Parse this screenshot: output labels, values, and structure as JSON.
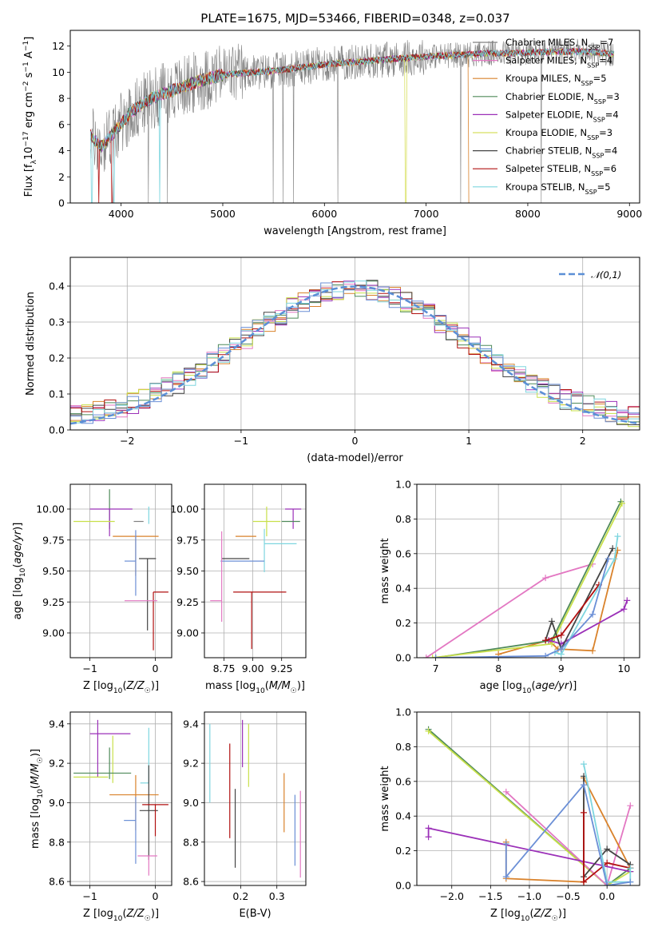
{
  "figure": {
    "title": "PLATE=1675, MJD=53466, FIBERID=0348, z=0.037"
  },
  "chart_data": [
    {
      "id": "spectrum",
      "type": "line",
      "title": "PLATE=1675, MJD=53466, FIBERID=0348, z=0.037",
      "xlabel": "wavelength [Angstrom, rest frame]",
      "ylabel": "Flux [f_λ 10^-17 erg cm^-2 s^-1 A^-1]",
      "xlim": [
        3500,
        9100
      ],
      "ylim": [
        0,
        13.2
      ],
      "xticks": [
        4000,
        5000,
        6000,
        7000,
        8000,
        9000
      ],
      "yticks": [
        0,
        2,
        4,
        6,
        8,
        10,
        12
      ],
      "grid": false,
      "legend_position": "upper-right",
      "data_range": [
        3700,
        8850
      ],
      "continuum": [
        [
          3700,
          5.2
        ],
        [
          3800,
          4.3
        ],
        [
          3950,
          5.6
        ],
        [
          4100,
          7.0
        ],
        [
          4300,
          8.0
        ],
        [
          4500,
          8.6
        ],
        [
          4800,
          9.4
        ],
        [
          5000,
          9.8
        ],
        [
          5500,
          10.1
        ],
        [
          6000,
          10.6
        ],
        [
          6500,
          10.9
        ],
        [
          7000,
          11.2
        ],
        [
          7500,
          11.4
        ],
        [
          8000,
          11.5
        ],
        [
          8500,
          11.6
        ],
        [
          8850,
          11.4
        ]
      ],
      "drops": [
        {
          "series": "Kroupa STELIB, N_SSP=5",
          "x": [
            3710,
            3930,
            4380
          ]
        },
        {
          "series": "Salpeter STELIB, N_SSP=6",
          "x": [
            3780,
            3910
          ]
        },
        {
          "series": "Kroupa ELODIE, N_SSP=3",
          "x": [
            6800
          ]
        },
        {
          "series": "Kroupa MILES, N_SSP=5",
          "x": [
            7420
          ]
        }
      ],
      "series": [
        {
          "name": "Chabrier MILES, N_SSP=7",
          "color": "#808080"
        },
        {
          "name": "Salpeter MILES, N_SSP=4",
          "color": "#e377c2"
        },
        {
          "name": "Kroupa MILES, N_SSP=5",
          "color": "#d9822b"
        },
        {
          "name": "Chabrier ELODIE, N_SSP=3",
          "color": "#4f8a5a"
        },
        {
          "name": "Salpeter ELODIE, N_SSP=4",
          "color": "#9b30b8"
        },
        {
          "name": "Kroupa ELODIE, N_SSP=3",
          "color": "#d8e060"
        },
        {
          "name": "Chabrier STELIB, N_SSP=4",
          "color": "#444444"
        },
        {
          "name": "Salpeter STELIB, N_SSP=6",
          "color": "#b11010"
        },
        {
          "name": "Kroupa STELIB, N_SSP=5",
          "color": "#7ed6df"
        }
      ]
    },
    {
      "id": "residuals",
      "type": "histogram",
      "xlabel": "(data-model)/error",
      "ylabel": "Normed distribution",
      "xlim": [
        -2.5,
        2.5
      ],
      "ylim": [
        0,
        0.48
      ],
      "xticks": [
        -2,
        -1,
        0,
        1,
        2
      ],
      "yticks": [
        0.0,
        0.1,
        0.2,
        0.3,
        0.4
      ],
      "grid": true,
      "legend_position": "upper-right",
      "legend": "𝒩(0,1)",
      "bin_width": 0.1,
      "reference_curve": {
        "type": "gaussian",
        "mu": 0,
        "sigma": 1,
        "color": "#5b8fd6"
      },
      "series_colors": [
        "#e377c2",
        "#d9822b",
        "#4f8a5a",
        "#9b30b8",
        "#c8e04a",
        "#444444",
        "#b11010",
        "#7ed6df",
        "#6b8fd6"
      ]
    },
    {
      "id": "age-vs-Z",
      "type": "errorbar",
      "xlabel": "Z [log10(Z/Z☉)]",
      "ylabel": "age [log10(age/yr)]",
      "xlim": [
        -1.3,
        0.25
      ],
      "ylim": [
        8.8,
        10.2
      ],
      "xticks": [
        -1,
        0
      ],
      "yticks": [
        9.0,
        9.25,
        9.5,
        9.75,
        10.0
      ],
      "grid": true,
      "points": [
        {
          "color": "#4f8a5a",
          "x": -0.7,
          "y": 10.0,
          "xerr": [
            0.0,
            0.0
          ],
          "yerr": [
            0.16,
            0.16
          ]
        },
        {
          "color": "#9b30b8",
          "x": -0.7,
          "y": 10.0,
          "xerr": [
            0.3,
            0.35
          ],
          "yerr": [
            0.22,
            0.0
          ]
        },
        {
          "color": "#c8e04a",
          "x": -0.72,
          "y": 9.9,
          "xerr": [
            0.53,
            0.1
          ],
          "yerr": [
            0.0,
            0.0
          ]
        },
        {
          "color": "#808080",
          "x": -0.33,
          "y": 9.9,
          "xerr": [
            0.0,
            0.15
          ],
          "yerr": [
            0.0,
            0.0
          ]
        },
        {
          "color": "#7ed6df",
          "x": -0.1,
          "y": 9.95,
          "xerr": [
            0.0,
            0.0
          ],
          "yerr": [
            0.07,
            0.07
          ]
        },
        {
          "color": "#d9822b",
          "x": -0.3,
          "y": 9.78,
          "xerr": [
            0.35,
            0.35
          ],
          "yerr": [
            0.32,
            0.0
          ]
        },
        {
          "color": "#6b8fd6",
          "x": -0.3,
          "y": 9.58,
          "xerr": [
            0.17,
            0.0
          ],
          "yerr": [
            0.28,
            0.25
          ]
        },
        {
          "color": "#444444",
          "x": -0.12,
          "y": 9.6,
          "xerr": [
            0.13,
            0.13
          ],
          "yerr": [
            0.58,
            0.0
          ]
        },
        {
          "color": "#b11010",
          "x": -0.03,
          "y": 9.33,
          "xerr": [
            0.0,
            0.23
          ],
          "yerr": [
            0.47,
            0.0
          ]
        },
        {
          "color": "#e377c2",
          "x": -0.1,
          "y": 9.26,
          "xerr": [
            0.37,
            0.13
          ],
          "yerr": [
            0.0,
            0.0
          ]
        }
      ]
    },
    {
      "id": "age-vs-mass",
      "type": "errorbar",
      "xlabel": "mass [log10(M/M☉)]",
      "ylabel": "",
      "xlim": [
        8.58,
        9.46
      ],
      "ylim": [
        8.8,
        10.2
      ],
      "xticks": [
        8.75,
        9.0,
        9.25
      ],
      "yticks": [
        9.0,
        9.25,
        9.5,
        9.75,
        10.0
      ],
      "grid": true,
      "points": [
        {
          "color": "#9b30b8",
          "x": 9.35,
          "y": 10.0,
          "xerr": [
            0.07,
            0.07
          ],
          "yerr": [
            0.16,
            0.0
          ]
        },
        {
          "color": "#4f8a5a",
          "x": 9.33,
          "y": 9.9,
          "xerr": [
            0.08,
            0.08
          ],
          "yerr": [
            0.0,
            0.0
          ]
        },
        {
          "color": "#c8e04a",
          "x": 9.12,
          "y": 9.9,
          "xerr": [
            0.12,
            0.12
          ],
          "yerr": [
            0.12,
            0.12
          ]
        },
        {
          "color": "#7ed6df",
          "x": 9.1,
          "y": 9.72,
          "xerr": [
            0.0,
            0.28
          ],
          "yerr": [
            0.23,
            0.12
          ]
        },
        {
          "color": "#d9822b",
          "x": 9.03,
          "y": 9.78,
          "xerr": [
            0.18,
            0.0
          ],
          "yerr": [
            0.0,
            0.0
          ]
        },
        {
          "color": "#444444",
          "x": 8.97,
          "y": 9.6,
          "xerr": [
            0.24,
            0.0
          ],
          "yerr": [
            0.0,
            0.0
          ]
        },
        {
          "color": "#6b8fd6",
          "x": 8.9,
          "y": 9.58,
          "xerr": [
            0.18,
            0.2
          ],
          "yerr": [
            0.0,
            0.0
          ]
        },
        {
          "color": "#b11010",
          "x": 8.99,
          "y": 9.33,
          "xerr": [
            0.16,
            0.3
          ],
          "yerr": [
            0.46,
            0.0
          ]
        },
        {
          "color": "#e377c2",
          "x": 8.73,
          "y": 9.26,
          "xerr": [
            0.1,
            0.0
          ],
          "yerr": [
            0.17,
            0.56
          ]
        }
      ]
    },
    {
      "id": "massweight-vs-age",
      "type": "line",
      "xlabel": "age [log10(age/yr)]",
      "ylabel": "mass weight",
      "xlim": [
        6.7,
        10.25
      ],
      "ylim": [
        0,
        1.0
      ],
      "xticks": [
        7,
        8,
        9,
        10
      ],
      "yticks": [
        0.0,
        0.2,
        0.4,
        0.6,
        0.8,
        1.0
      ],
      "grid": true,
      "series": [
        {
          "color": "#e377c2",
          "x": [
            6.85,
            8.75,
            9.5
          ],
          "y": [
            0.0,
            0.46,
            0.54
          ]
        },
        {
          "color": "#d9822b",
          "x": [
            8.0,
            8.8,
            8.95,
            9.5,
            9.9
          ],
          "y": [
            0.02,
            0.1,
            0.05,
            0.04,
            0.62
          ]
        },
        {
          "color": "#4f8a5a",
          "x": [
            7.0,
            8.85,
            9.95
          ],
          "y": [
            0.0,
            0.1,
            0.9
          ]
        },
        {
          "color": "#c8e04a",
          "x": [
            6.95,
            8.85,
            9.97
          ],
          "y": [
            0.0,
            0.08,
            0.89
          ]
        },
        {
          "color": "#9b30b8",
          "x": [
            8.8,
            9.0,
            10.0,
            10.05
          ],
          "y": [
            0.1,
            0.08,
            0.28,
            0.33
          ]
        },
        {
          "color": "#444444",
          "x": [
            8.75,
            8.85,
            9.0,
            9.82
          ],
          "y": [
            0.1,
            0.21,
            0.05,
            0.63
          ]
        },
        {
          "color": "#b11010",
          "x": [
            8.75,
            9.0,
            9.6
          ],
          "y": [
            0.1,
            0.13,
            0.42
          ]
        },
        {
          "color": "#7ed6df",
          "x": [
            8.9,
            9.0,
            9.85,
            9.9
          ],
          "y": [
            0.03,
            0.02,
            0.57,
            0.7
          ]
        },
        {
          "color": "#6b8fd6",
          "x": [
            7.0,
            8.75,
            9.0,
            9.5,
            9.75
          ],
          "y": [
            0.0,
            0.01,
            0.05,
            0.25,
            0.57
          ]
        }
      ]
    },
    {
      "id": "mass-vs-Z",
      "type": "errorbar",
      "xlabel": "Z [log10(Z/Z☉)]",
      "ylabel": "mass [log10(M/M☉)]",
      "xlim": [
        -1.3,
        0.25
      ],
      "ylim": [
        8.58,
        9.46
      ],
      "xticks": [
        -1,
        0
      ],
      "yticks": [
        8.6,
        8.8,
        9.0,
        9.2,
        9.4
      ],
      "grid": true,
      "points": [
        {
          "color": "#9b30b8",
          "x": -0.88,
          "y": 9.35,
          "xerr": [
            0.12,
            0.5
          ],
          "yerr": [
            0.22,
            0.07
          ]
        },
        {
          "color": "#c8e04a",
          "x": -0.65,
          "y": 9.22,
          "xerr": [
            0.0,
            0.0
          ],
          "yerr": [
            0.12,
            0.12
          ]
        },
        {
          "color": "#4f8a5a",
          "x": -0.7,
          "y": 9.15,
          "xerr": [
            0.55,
            0.33
          ],
          "yerr": [
            0.0,
            0.0
          ]
        },
        {
          "color": "#c8e04a",
          "x": -0.72,
          "y": 9.13,
          "xerr": [
            0.53,
            0.0
          ],
          "yerr": [
            0.0,
            0.0
          ]
        },
        {
          "color": "#4f8a5a",
          "x": -0.7,
          "y": 9.2,
          "xerr": [
            0.0,
            0.0
          ],
          "yerr": [
            0.08,
            0.08
          ]
        },
        {
          "color": "#7ed6df",
          "x": -0.1,
          "y": 9.1,
          "xerr": [
            0.13,
            0.0
          ],
          "yerr": [
            0.0,
            0.28
          ]
        },
        {
          "color": "#d9822b",
          "x": -0.3,
          "y": 9.04,
          "xerr": [
            0.4,
            0.35
          ],
          "yerr": [
            0.18,
            0.1
          ]
        },
        {
          "color": "#444444",
          "x": -0.1,
          "y": 8.96,
          "xerr": [
            0.14,
            0.14
          ],
          "yerr": [
            0.25,
            0.23
          ]
        },
        {
          "color": "#b11010",
          "x": 0.0,
          "y": 8.99,
          "xerr": [
            0.2,
            0.2
          ],
          "yerr": [
            0.16,
            0.0
          ]
        },
        {
          "color": "#6b8fd6",
          "x": -0.3,
          "y": 8.91,
          "xerr": [
            0.18,
            0.0
          ],
          "yerr": [
            0.22,
            0.12
          ]
        },
        {
          "color": "#e377c2",
          "x": -0.1,
          "y": 8.73,
          "xerr": [
            0.17,
            0.13
          ],
          "yerr": [
            0.1,
            0.0
          ]
        }
      ]
    },
    {
      "id": "mass-vs-ebv",
      "type": "errorbar",
      "xlabel": "E(B-V)",
      "ylabel": "",
      "xlim": [
        0.1,
        0.38
      ],
      "ylim": [
        8.58,
        9.46
      ],
      "xticks": [
        0.2,
        0.3
      ],
      "yticks": [
        8.6,
        8.8,
        9.0,
        9.2,
        9.4
      ],
      "grid": true,
      "points": [
        {
          "color": "#7ed6df",
          "x": 0.115,
          "y": 9.2,
          "xerr": [
            0.0,
            0.0
          ],
          "yerr": [
            0.2,
            0.2
          ]
        },
        {
          "color": "#b11010",
          "x": 0.17,
          "y": 9.06,
          "xerr": [
            0.0,
            0.0
          ],
          "yerr": [
            0.24,
            0.24
          ]
        },
        {
          "color": "#444444",
          "x": 0.185,
          "y": 8.87,
          "xerr": [
            0.0,
            0.0
          ],
          "yerr": [
            0.2,
            0.2
          ]
        },
        {
          "color": "#9b30b8",
          "x": 0.205,
          "y": 9.3,
          "xerr": [
            0.0,
            0.0
          ],
          "yerr": [
            0.12,
            0.12
          ]
        },
        {
          "color": "#c8e04a",
          "x": 0.222,
          "y": 9.24,
          "xerr": [
            0.0,
            0.0
          ],
          "yerr": [
            0.16,
            0.16
          ]
        },
        {
          "color": "#d9822b",
          "x": 0.32,
          "y": 9.0,
          "xerr": [
            0.0,
            0.0
          ],
          "yerr": [
            0.15,
            0.15
          ]
        },
        {
          "color": "#6b8fd6",
          "x": 0.35,
          "y": 8.86,
          "xerr": [
            0.0,
            0.0
          ],
          "yerr": [
            0.18,
            0.18
          ]
        },
        {
          "color": "#e377c2",
          "x": 0.365,
          "y": 8.84,
          "xerr": [
            0.0,
            0.0
          ],
          "yerr": [
            0.22,
            0.22
          ]
        }
      ]
    },
    {
      "id": "massweight-vs-Z",
      "type": "line",
      "xlabel": "Z [log10(Z/Z☉)]",
      "ylabel": "mass weight",
      "xlim": [
        -2.45,
        0.42
      ],
      "ylim": [
        0,
        1.0
      ],
      "xticks": [
        -2.0,
        -1.5,
        -1.0,
        -0.5,
        0.0
      ],
      "yticks": [
        0.0,
        0.2,
        0.4,
        0.6,
        0.8,
        1.0
      ],
      "grid": true,
      "series": [
        {
          "color": "#4f8a5a",
          "x": [
            -2.3,
            0.0,
            0.3
          ],
          "y": [
            0.9,
            0.0,
            0.1
          ]
        },
        {
          "color": "#c8e04a",
          "x": [
            -2.3,
            0.0,
            0.3
          ],
          "y": [
            0.89,
            0.0,
            0.08
          ]
        },
        {
          "color": "#e377c2",
          "x": [
            -1.3,
            0.0,
            0.3
          ],
          "y": [
            0.54,
            0.0,
            0.46
          ]
        },
        {
          "color": "#9b30b8",
          "x": [
            -2.3,
            -2.3,
            0.3
          ],
          "y": [
            0.28,
            0.33,
            0.08
          ]
        },
        {
          "color": "#d9822b",
          "x": [
            -1.3,
            -1.3,
            -0.3,
            -0.3,
            0.3
          ],
          "y": [
            0.25,
            0.04,
            0.02,
            0.62,
            0.1
          ]
        },
        {
          "color": "#444444",
          "x": [
            -0.3,
            -0.3,
            0.0,
            0.3
          ],
          "y": [
            0.63,
            0.05,
            0.21,
            0.12
          ]
        },
        {
          "color": "#b11010",
          "x": [
            -0.3,
            -0.3,
            0.0,
            0.3
          ],
          "y": [
            0.42,
            0.02,
            0.13,
            0.1
          ]
        },
        {
          "color": "#7ed6df",
          "x": [
            -0.3,
            0.0,
            0.3,
            0.3
          ],
          "y": [
            0.7,
            0.02,
            0.02,
            0.1
          ]
        },
        {
          "color": "#6b8fd6",
          "x": [
            -1.3,
            -1.3,
            -0.3,
            0.0,
            0.3
          ],
          "y": [
            0.24,
            0.05,
            0.58,
            0.0,
            0.02
          ]
        }
      ]
    }
  ]
}
